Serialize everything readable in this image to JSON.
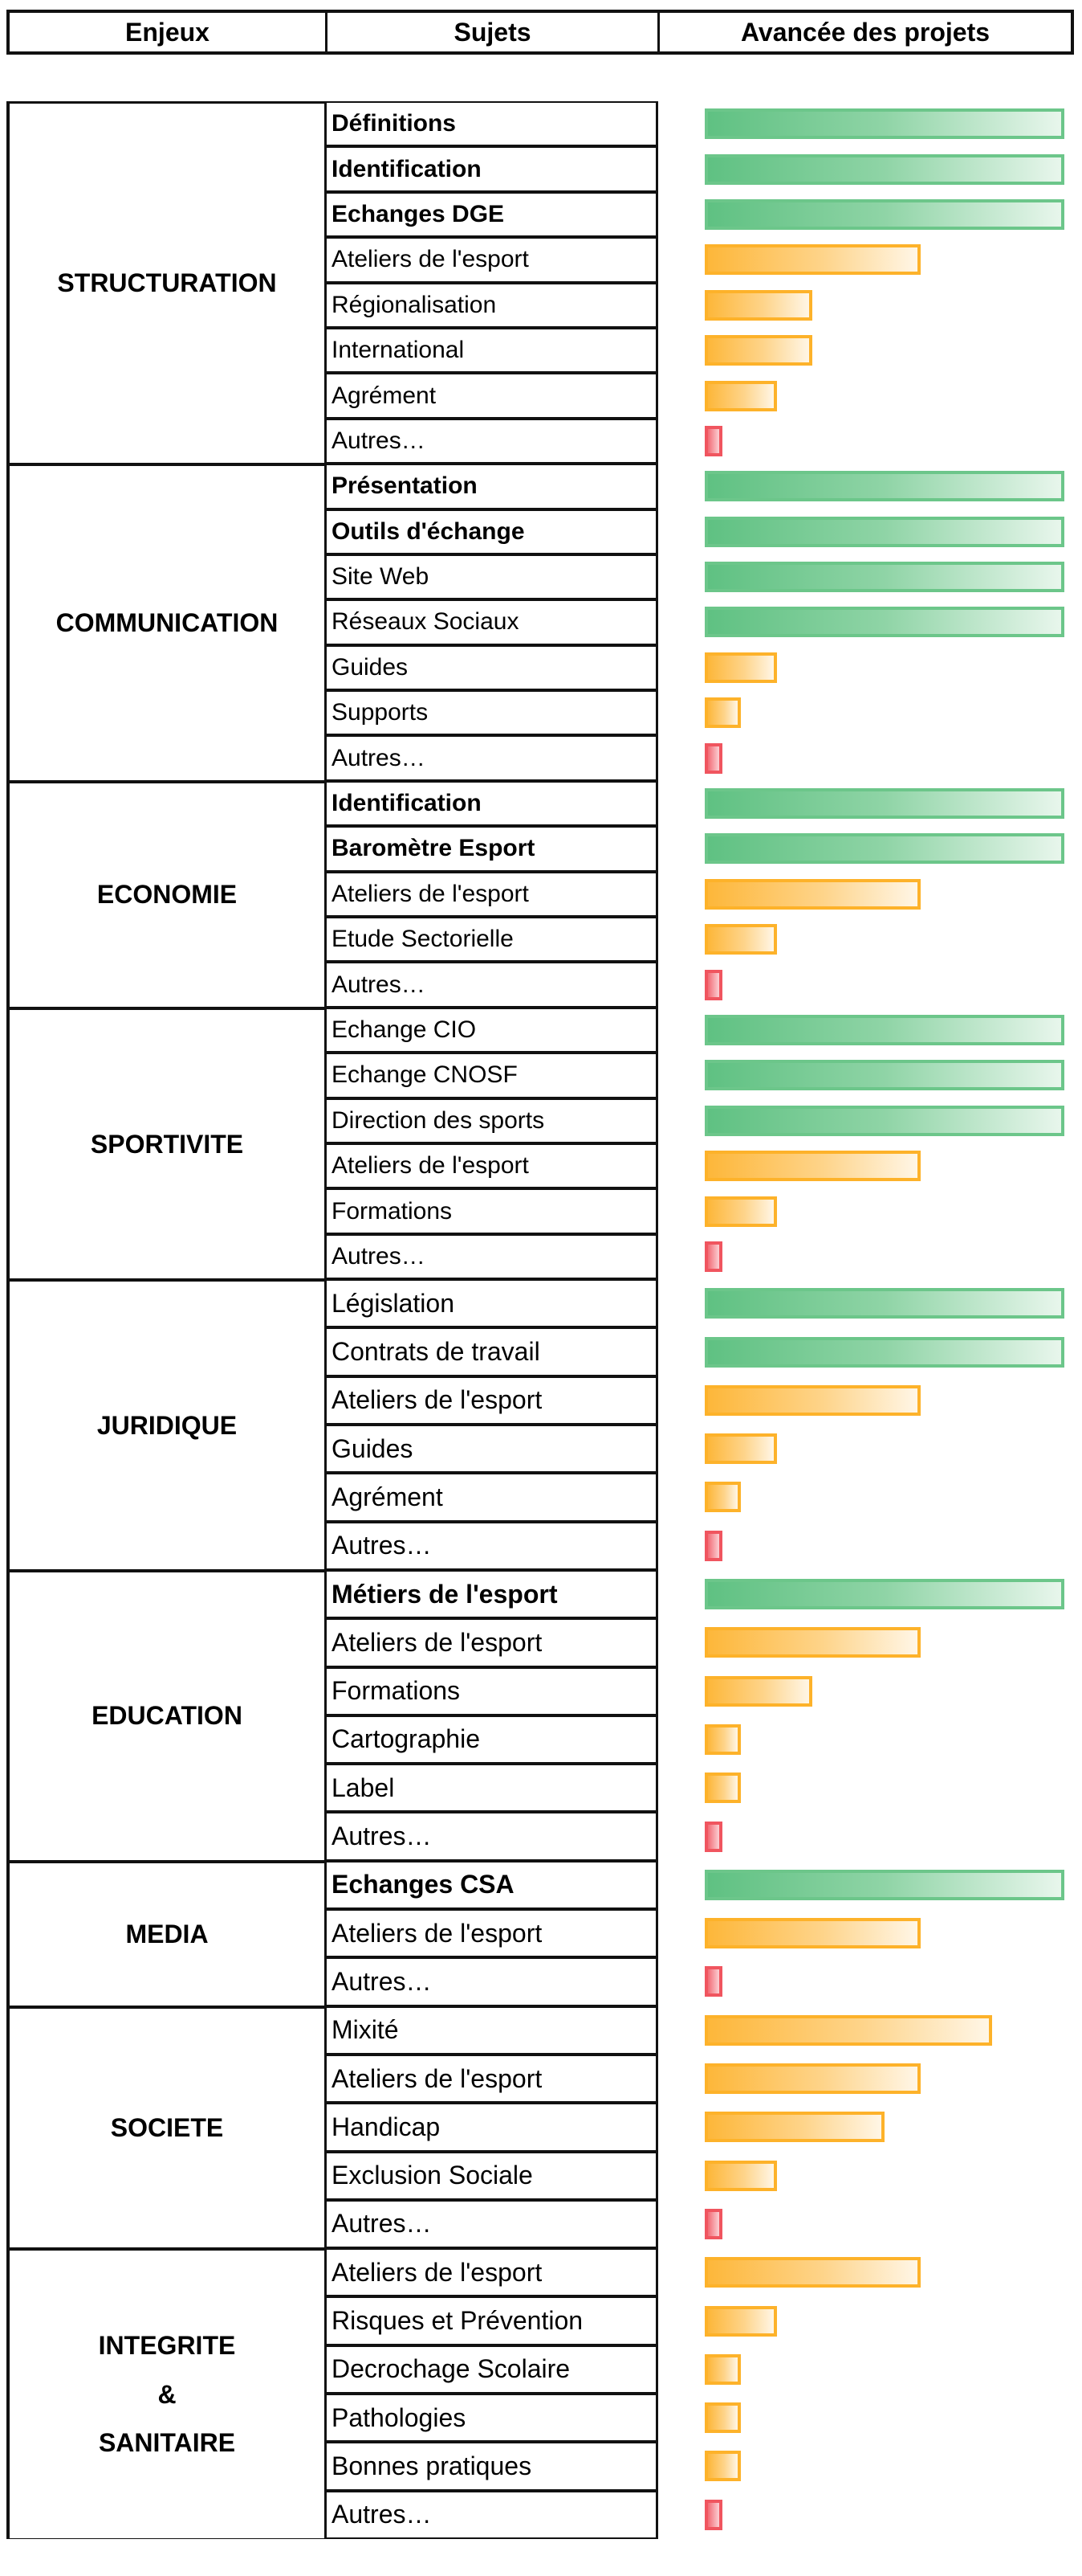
{
  "header": {
    "enjeux": "Enjeux",
    "sujets": "Sujets",
    "avancee": "Avancée des projets"
  },
  "colors": {
    "green": "#5fc182",
    "orange": "#fdb22a",
    "red": "#f0555f"
  },
  "sections": [
    {
      "enjeu": [
        "STRUCTURATION"
      ],
      "rows": [
        {
          "label": "Définitions",
          "bold": true,
          "progress": 1.0,
          "status": "green"
        },
        {
          "label": "Identification",
          "bold": true,
          "progress": 1.0,
          "status": "green"
        },
        {
          "label": "Echanges DGE",
          "bold": true,
          "progress": 1.0,
          "status": "green"
        },
        {
          "label": "Ateliers de l'esport",
          "bold": false,
          "progress": 0.6,
          "status": "orange"
        },
        {
          "label": "Régionalisation",
          "bold": false,
          "progress": 0.3,
          "status": "orange"
        },
        {
          "label": "International",
          "bold": false,
          "progress": 0.3,
          "status": "orange"
        },
        {
          "label": "Agrément",
          "bold": false,
          "progress": 0.2,
          "status": "orange"
        },
        {
          "label": "Autres…",
          "bold": false,
          "progress": 0.05,
          "status": "red"
        }
      ]
    },
    {
      "enjeu": [
        "COMMUNICATION"
      ],
      "rows": [
        {
          "label": "Présentation",
          "bold": true,
          "progress": 1.0,
          "status": "green"
        },
        {
          "label": "Outils d'échange",
          "bold": true,
          "progress": 1.0,
          "status": "green"
        },
        {
          "label": "Site Web",
          "bold": false,
          "progress": 1.0,
          "status": "green"
        },
        {
          "label": "Réseaux Sociaux",
          "bold": false,
          "progress": 1.0,
          "status": "green"
        },
        {
          "label": "Guides",
          "bold": false,
          "progress": 0.2,
          "status": "orange"
        },
        {
          "label": "Supports",
          "bold": false,
          "progress": 0.1,
          "status": "orange"
        },
        {
          "label": "Autres…",
          "bold": false,
          "progress": 0.05,
          "status": "red"
        }
      ]
    },
    {
      "enjeu": [
        "ECONOMIE"
      ],
      "rows": [
        {
          "label": "Identification",
          "bold": true,
          "progress": 1.0,
          "status": "green"
        },
        {
          "label": "Baromètre Esport",
          "bold": true,
          "progress": 1.0,
          "status": "green"
        },
        {
          "label": "Ateliers de l'esport",
          "bold": false,
          "progress": 0.6,
          "status": "orange"
        },
        {
          "label": "Etude Sectorielle",
          "bold": false,
          "progress": 0.2,
          "status": "orange"
        },
        {
          "label": "Autres…",
          "bold": false,
          "progress": 0.05,
          "status": "red"
        }
      ]
    },
    {
      "enjeu": [
        "SPORTIVITE"
      ],
      "rows": [
        {
          "label": "Echange CIO",
          "bold": false,
          "progress": 1.0,
          "status": "green"
        },
        {
          "label": "Echange CNOSF",
          "bold": false,
          "progress": 1.0,
          "status": "green"
        },
        {
          "label": "Direction des sports",
          "bold": false,
          "progress": 1.0,
          "status": "green"
        },
        {
          "label": "Ateliers de l'esport",
          "bold": false,
          "progress": 0.6,
          "status": "orange"
        },
        {
          "label": "Formations",
          "bold": false,
          "progress": 0.2,
          "status": "orange"
        },
        {
          "label": "Autres…",
          "bold": false,
          "progress": 0.05,
          "status": "red"
        }
      ]
    },
    {
      "enjeu": [
        "JURIDIQUE"
      ],
      "rows": [
        {
          "label": "Législation",
          "bold": false,
          "progress": 1.0,
          "status": "green"
        },
        {
          "label": "Contrats de travail",
          "bold": false,
          "progress": 1.0,
          "status": "green"
        },
        {
          "label": "Ateliers de l'esport",
          "bold": false,
          "progress": 0.6,
          "status": "orange"
        },
        {
          "label": "Guides",
          "bold": false,
          "progress": 0.2,
          "status": "orange"
        },
        {
          "label": "Agrément",
          "bold": false,
          "progress": 0.1,
          "status": "orange"
        },
        {
          "label": "Autres…",
          "bold": false,
          "progress": 0.05,
          "status": "red"
        }
      ]
    },
    {
      "enjeu": [
        "EDUCATION"
      ],
      "rows": [
        {
          "label": "Métiers de l'esport",
          "bold": true,
          "progress": 1.0,
          "status": "green"
        },
        {
          "label": "Ateliers de l'esport",
          "bold": false,
          "progress": 0.6,
          "status": "orange"
        },
        {
          "label": "Formations",
          "bold": false,
          "progress": 0.3,
          "status": "orange"
        },
        {
          "label": "Cartographie",
          "bold": false,
          "progress": 0.1,
          "status": "orange"
        },
        {
          "label": "Label",
          "bold": false,
          "progress": 0.1,
          "status": "orange"
        },
        {
          "label": "Autres…",
          "bold": false,
          "progress": 0.05,
          "status": "red"
        }
      ]
    },
    {
      "enjeu": [
        "MEDIA"
      ],
      "rows": [
        {
          "label": "Echanges CSA",
          "bold": true,
          "progress": 1.0,
          "status": "green"
        },
        {
          "label": "Ateliers de l'esport",
          "bold": false,
          "progress": 0.6,
          "status": "orange"
        },
        {
          "label": "Autres…",
          "bold": false,
          "progress": 0.05,
          "status": "red"
        }
      ]
    },
    {
      "enjeu": [
        "SOCIETE"
      ],
      "rows": [
        {
          "label": "Mixité",
          "bold": false,
          "progress": 0.8,
          "status": "orange"
        },
        {
          "label": "Ateliers de l'esport",
          "bold": false,
          "progress": 0.6,
          "status": "orange"
        },
        {
          "label": "Handicap",
          "bold": false,
          "progress": 0.5,
          "status": "orange"
        },
        {
          "label": "Exclusion Sociale",
          "bold": false,
          "progress": 0.2,
          "status": "orange"
        },
        {
          "label": "Autres…",
          "bold": false,
          "progress": 0.05,
          "status": "red"
        }
      ]
    },
    {
      "enjeu": [
        "INTEGRITE",
        "&",
        "SANITAIRE"
      ],
      "rows": [
        {
          "label": "Ateliers de l'esport",
          "bold": false,
          "progress": 0.6,
          "status": "orange"
        },
        {
          "label": "Risques et Prévention",
          "bold": false,
          "progress": 0.2,
          "status": "orange"
        },
        {
          "label": "Decrochage Scolaire",
          "bold": false,
          "progress": 0.1,
          "status": "orange"
        },
        {
          "label": "Pathologies",
          "bold": false,
          "progress": 0.1,
          "status": "orange"
        },
        {
          "label": "Bonnes pratiques",
          "bold": false,
          "progress": 0.1,
          "status": "orange"
        },
        {
          "label": "Autres…",
          "bold": false,
          "progress": 0.05,
          "status": "red"
        }
      ]
    }
  ]
}
